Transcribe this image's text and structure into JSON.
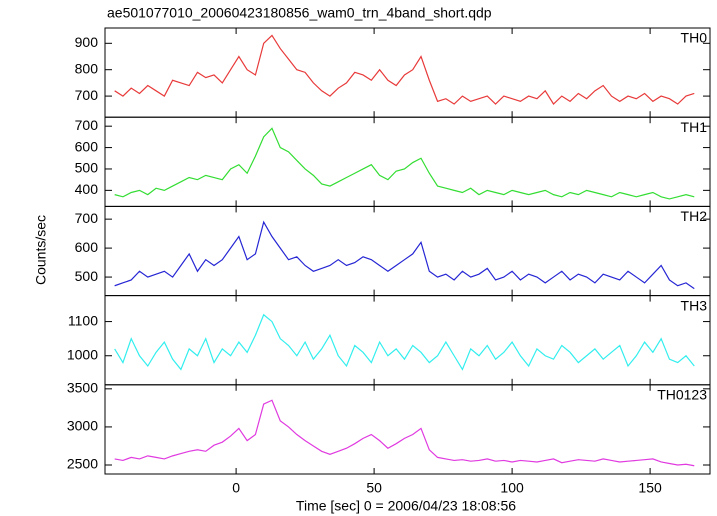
{
  "title": "ae501077010_20060423180856_wam0_trn_4band_short.qdp",
  "xlabel": "Time [sec] 0 = 2006/04/23 18:08:56",
  "ylabel": "Counts/sec",
  "chart_data": [
    {
      "type": "line",
      "x": [
        -44,
        -41,
        -38,
        -35,
        -32,
        -29,
        -26,
        -23,
        -20,
        -17,
        -14,
        -11,
        -8,
        -5,
        -2,
        1,
        4,
        7,
        10,
        13,
        16,
        19,
        22,
        25,
        28,
        31,
        34,
        37,
        40,
        43,
        46,
        49,
        52,
        55,
        58,
        61,
        64,
        67,
        70,
        73,
        76,
        79,
        82,
        85,
        88,
        91,
        94,
        97,
        100,
        103,
        106,
        109,
        112,
        115,
        118,
        121,
        124,
        127,
        130,
        133,
        136,
        139,
        142,
        145,
        148,
        151,
        154,
        157,
        160,
        163,
        166
      ],
      "xlim": [
        -47.5,
        171.7
      ],
      "xticks": [
        0,
        50,
        100,
        150
      ],
      "ylim": [
        620,
        958
      ],
      "yticks": [
        700,
        800,
        900
      ],
      "series": [
        {
          "name": "TH0",
          "color": "#e83a3a",
          "values": [
            720,
            700,
            730,
            710,
            740,
            720,
            700,
            760,
            750,
            740,
            790,
            770,
            780,
            750,
            800,
            850,
            800,
            780,
            900,
            930,
            880,
            840,
            800,
            790,
            750,
            720,
            700,
            730,
            750,
            790,
            780,
            760,
            800,
            760,
            740,
            780,
            800,
            850,
            760,
            680,
            690,
            670,
            700,
            680,
            690,
            700,
            670,
            700,
            690,
            680,
            700,
            690,
            720,
            670,
            700,
            680,
            710,
            690,
            720,
            740,
            700,
            680,
            700,
            690,
            710,
            680,
            700,
            690,
            670,
            700,
            710
          ]
        }
      ]
    },
    {
      "type": "line",
      "x": [
        -44,
        -41,
        -38,
        -35,
        -32,
        -29,
        -26,
        -23,
        -20,
        -17,
        -14,
        -11,
        -8,
        -5,
        -2,
        1,
        4,
        7,
        10,
        13,
        16,
        19,
        22,
        25,
        28,
        31,
        34,
        37,
        40,
        43,
        46,
        49,
        52,
        55,
        58,
        61,
        64,
        67,
        70,
        73,
        76,
        79,
        82,
        85,
        88,
        91,
        94,
        97,
        100,
        103,
        106,
        109,
        112,
        115,
        118,
        121,
        124,
        127,
        130,
        133,
        136,
        139,
        142,
        145,
        148,
        151,
        154,
        157,
        160,
        163,
        166
      ],
      "xlim": [
        -47.5,
        171.7
      ],
      "xticks": [
        0,
        50,
        100,
        150
      ],
      "ylim": [
        325,
        742
      ],
      "yticks": [
        400,
        500,
        600,
        700
      ],
      "series": [
        {
          "name": "TH1",
          "color": "#33dd33",
          "values": [
            380,
            370,
            390,
            400,
            380,
            410,
            400,
            420,
            440,
            460,
            450,
            470,
            460,
            450,
            500,
            520,
            480,
            560,
            650,
            690,
            600,
            580,
            540,
            500,
            470,
            430,
            420,
            440,
            460,
            480,
            500,
            520,
            470,
            450,
            490,
            500,
            530,
            550,
            480,
            420,
            410,
            400,
            390,
            410,
            380,
            400,
            390,
            380,
            400,
            390,
            380,
            390,
            400,
            380,
            370,
            390,
            380,
            400,
            390,
            380,
            370,
            390,
            380,
            370,
            380,
            390,
            370,
            360,
            370,
            380,
            370
          ]
        }
      ]
    },
    {
      "type": "line",
      "x": [
        -44,
        -41,
        -38,
        -35,
        -32,
        -29,
        -26,
        -23,
        -20,
        -17,
        -14,
        -11,
        -8,
        -5,
        -2,
        1,
        4,
        7,
        10,
        13,
        16,
        19,
        22,
        25,
        28,
        31,
        34,
        37,
        40,
        43,
        46,
        49,
        52,
        55,
        58,
        61,
        64,
        67,
        70,
        73,
        76,
        79,
        82,
        85,
        88,
        91,
        94,
        97,
        100,
        103,
        106,
        109,
        112,
        115,
        118,
        121,
        124,
        127,
        130,
        133,
        136,
        139,
        142,
        145,
        148,
        151,
        154,
        157,
        160,
        163,
        166
      ],
      "xlim": [
        -47.5,
        171.7
      ],
      "xticks": [
        0,
        50,
        100,
        150
      ],
      "ylim": [
        436,
        744
      ],
      "yticks": [
        500,
        600,
        700
      ],
      "series": [
        {
          "name": "TH2",
          "color": "#2626d4",
          "values": [
            470,
            480,
            490,
            520,
            500,
            510,
            520,
            500,
            540,
            580,
            520,
            560,
            540,
            560,
            600,
            640,
            560,
            580,
            690,
            640,
            600,
            560,
            570,
            540,
            520,
            530,
            540,
            560,
            540,
            550,
            570,
            560,
            540,
            520,
            540,
            560,
            580,
            620,
            520,
            500,
            510,
            490,
            520,
            500,
            510,
            530,
            490,
            500,
            520,
            490,
            510,
            500,
            480,
            500,
            520,
            490,
            510,
            500,
            480,
            510,
            500,
            490,
            520,
            500,
            480,
            510,
            540,
            490,
            470,
            480,
            460
          ]
        }
      ]
    },
    {
      "type": "line",
      "x": [
        -44,
        -41,
        -38,
        -35,
        -32,
        -29,
        -26,
        -23,
        -20,
        -17,
        -14,
        -11,
        -8,
        -5,
        -2,
        1,
        4,
        7,
        10,
        13,
        16,
        19,
        22,
        25,
        28,
        31,
        34,
        37,
        40,
        43,
        46,
        49,
        52,
        55,
        58,
        61,
        64,
        67,
        70,
        73,
        76,
        79,
        82,
        85,
        88,
        91,
        94,
        97,
        100,
        103,
        106,
        109,
        112,
        115,
        118,
        121,
        124,
        127,
        130,
        133,
        136,
        139,
        142,
        145,
        148,
        151,
        154,
        157,
        160,
        163,
        166
      ],
      "xlim": [
        -47.5,
        171.7
      ],
      "xticks": [
        0,
        50,
        100,
        150
      ],
      "ylim": [
        915,
        1176
      ],
      "yticks": [
        1000,
        1100
      ],
      "series": [
        {
          "name": "TH3",
          "color": "#33eeee",
          "values": [
            1020,
            980,
            1050,
            1000,
            970,
            1010,
            1040,
            990,
            960,
            1020,
            1000,
            1050,
            980,
            1020,
            1000,
            1040,
            1010,
            1060,
            1120,
            1100,
            1050,
            1030,
            1000,
            1040,
            990,
            1020,
            1060,
            1000,
            970,
            1030,
            1010,
            980,
            1040,
            1000,
            1020,
            990,
            1030,
            1010,
            980,
            1000,
            1040,
            1000,
            960,
            1020,
            1000,
            1030,
            990,
            1010,
            1040,
            1000,
            970,
            1020,
            1000,
            990,
            1030,
            1010,
            980,
            1000,
            1020,
            990,
            1010,
            1030,
            970,
            1000,
            1040,
            1010,
            1050,
            990,
            980,
            1000,
            970
          ]
        }
      ]
    },
    {
      "type": "line",
      "x": [
        -44,
        -41,
        -38,
        -35,
        -32,
        -29,
        -26,
        -23,
        -20,
        -17,
        -14,
        -11,
        -8,
        -5,
        -2,
        1,
        4,
        7,
        10,
        13,
        16,
        19,
        22,
        25,
        28,
        31,
        34,
        37,
        40,
        43,
        46,
        49,
        52,
        55,
        58,
        61,
        64,
        67,
        70,
        73,
        76,
        79,
        82,
        85,
        88,
        91,
        94,
        97,
        100,
        103,
        106,
        109,
        112,
        115,
        118,
        121,
        124,
        127,
        130,
        133,
        136,
        139,
        142,
        145,
        148,
        151,
        154,
        157,
        160,
        163,
        166
      ],
      "xlim": [
        -47.5,
        171.7
      ],
      "xticks": [
        0,
        50,
        100,
        150
      ],
      "ylim": [
        2382,
        3553
      ],
      "yticks": [
        2500,
        3000,
        3500
      ],
      "series": [
        {
          "name": "TH0123",
          "color": "#e03ae0",
          "values": [
            2580,
            2560,
            2600,
            2580,
            2620,
            2600,
            2580,
            2620,
            2650,
            2680,
            2700,
            2680,
            2760,
            2800,
            2880,
            2980,
            2820,
            2900,
            3300,
            3350,
            3080,
            3000,
            2900,
            2820,
            2750,
            2680,
            2640,
            2680,
            2720,
            2780,
            2850,
            2900,
            2820,
            2720,
            2780,
            2850,
            2900,
            2980,
            2700,
            2600,
            2580,
            2560,
            2570,
            2550,
            2560,
            2580,
            2550,
            2560,
            2540,
            2560,
            2550,
            2540,
            2560,
            2580,
            2530,
            2550,
            2570,
            2560,
            2550,
            2580,
            2560,
            2540,
            2550,
            2560,
            2570,
            2580,
            2540,
            2520,
            2500,
            2510,
            2490
          ]
        }
      ]
    }
  ]
}
